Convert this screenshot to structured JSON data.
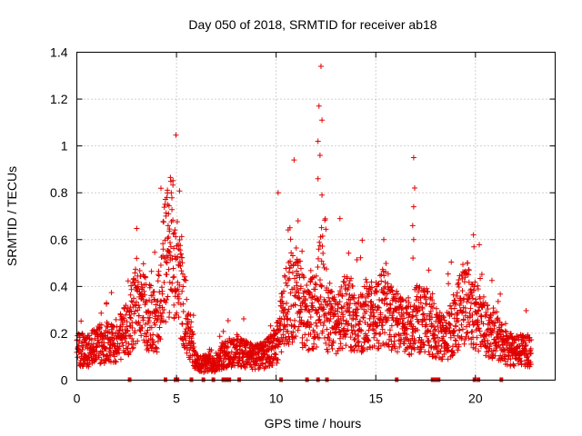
{
  "chart_data": {
    "type": "scatter",
    "title": "Day 050 of 2018, SRMTID for receiver ab18",
    "xlabel": "GPS time / hours",
    "ylabel": "SRMTID / TECUs",
    "xlim": [
      0,
      24
    ],
    "ylim": [
      0,
      1.4
    ],
    "x_ticks": [
      0,
      5,
      10,
      15,
      20
    ],
    "x_tick_labels": [
      "0",
      "5",
      "10",
      "15",
      "20"
    ],
    "y_ticks": [
      0,
      0.2,
      0.4,
      0.6,
      0.8,
      1.0,
      1.2,
      1.4
    ],
    "y_tick_labels": [
      "0",
      "0.2",
      "0.4",
      "0.6",
      "0.8",
      "1",
      "1.2",
      "1.4"
    ],
    "grid": true,
    "marker": "+",
    "color": "#e00000",
    "series": [
      {
        "name": "SRMTID",
        "profile": [
          [
            0.0,
            0.14
          ],
          [
            0.5,
            0.12
          ],
          [
            1.0,
            0.15
          ],
          [
            1.5,
            0.16
          ],
          [
            2.0,
            0.17
          ],
          [
            2.5,
            0.22
          ],
          [
            3.0,
            0.32
          ],
          [
            3.5,
            0.28
          ],
          [
            4.0,
            0.24
          ],
          [
            4.5,
            0.55
          ],
          [
            4.8,
            0.6
          ],
          [
            5.2,
            0.38
          ],
          [
            5.6,
            0.22
          ],
          [
            6.0,
            0.07
          ],
          [
            6.5,
            0.07
          ],
          [
            7.0,
            0.08
          ],
          [
            7.5,
            0.11
          ],
          [
            8.0,
            0.13
          ],
          [
            8.5,
            0.11
          ],
          [
            9.0,
            0.1
          ],
          [
            9.5,
            0.11
          ],
          [
            10.0,
            0.15
          ],
          [
            10.5,
            0.32
          ],
          [
            11.0,
            0.38
          ],
          [
            11.5,
            0.26
          ],
          [
            12.0,
            0.3
          ],
          [
            12.3,
            0.45
          ],
          [
            12.6,
            0.25
          ],
          [
            13.0,
            0.24
          ],
          [
            13.5,
            0.3
          ],
          [
            14.0,
            0.24
          ],
          [
            14.5,
            0.28
          ],
          [
            15.0,
            0.27
          ],
          [
            15.5,
            0.33
          ],
          [
            16.0,
            0.25
          ],
          [
            16.5,
            0.22
          ],
          [
            17.0,
            0.26
          ],
          [
            17.5,
            0.27
          ],
          [
            18.0,
            0.2
          ],
          [
            18.5,
            0.18
          ],
          [
            19.0,
            0.25
          ],
          [
            19.5,
            0.35
          ],
          [
            20.0,
            0.28
          ],
          [
            20.5,
            0.22
          ],
          [
            21.0,
            0.2
          ],
          [
            21.5,
            0.14
          ],
          [
            22.0,
            0.12
          ],
          [
            22.5,
            0.13
          ],
          [
            22.8,
            0.12
          ]
        ],
        "peaks": [
          [
            4.52,
            0.78
          ],
          [
            4.55,
            0.75
          ],
          [
            4.6,
            0.71
          ],
          [
            4.58,
            0.66
          ],
          [
            10.1,
            0.8
          ],
          [
            10.9,
            0.94
          ],
          [
            11.1,
            0.68
          ],
          [
            12.1,
            1.02
          ],
          [
            12.15,
            1.17
          ],
          [
            12.25,
            1.34
          ],
          [
            12.3,
            1.11
          ],
          [
            12.2,
            0.96
          ],
          [
            12.1,
            0.86
          ],
          [
            12.3,
            0.79
          ],
          [
            13.2,
            0.69
          ],
          [
            15.4,
            0.6
          ],
          [
            16.9,
            0.95
          ],
          [
            16.95,
            0.82
          ],
          [
            16.9,
            0.74
          ],
          [
            16.85,
            0.66
          ],
          [
            16.9,
            0.6
          ],
          [
            19.9,
            0.62
          ],
          [
            11.3,
            0.55
          ],
          [
            3.0,
            0.52
          ]
        ]
      }
    ],
    "gap_markers_x": [
      2.65,
      4.45,
      4.95,
      5.05,
      5.75,
      6.35,
      6.85,
      7.35,
      7.5,
      7.65,
      8.15,
      10.25,
      11.55,
      12.1,
      12.55,
      16.05,
      17.85,
      17.95,
      18.05,
      18.15,
      19.95,
      20.15,
      21.3
    ]
  }
}
